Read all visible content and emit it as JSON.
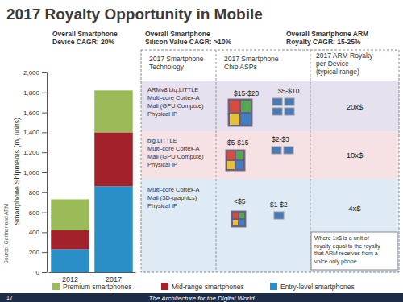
{
  "chart_data": {
    "type": "bar",
    "stacked": true,
    "legend": "bottom",
    "categories": [
      "2012",
      "2017"
    ],
    "series": [
      {
        "name": "Entry-level smartphones",
        "color": "#2b8fc7",
        "values": [
          230,
          860
        ]
      },
      {
        "name": "Mid-range smartphones",
        "color": "#a3212a",
        "values": [
          190,
          540
        ]
      },
      {
        "name": "Premium smartphones",
        "color": "#9bbb59",
        "values": [
          310,
          420
        ]
      }
    ],
    "ylim": [
      0,
      2000
    ],
    "yticks": [
      0,
      200,
      400,
      600,
      800,
      {
        "value": 1000,
        "label": "1,000"
      },
      {
        "value": 1200,
        "label": "1,200"
      },
      {
        "value": 1400,
        "label": "1,400"
      },
      {
        "value": 1600,
        "label": "1,600"
      },
      {
        "value": 1800,
        "label": "1,800"
      },
      {
        "value": 2000,
        "label": "2,000"
      }
    ],
    "y_label": "Smartphone Shipments (m, units)",
    "annotation": "Source: Gartner and ARM"
  },
  "slide": {
    "title": "2017 Royalty Opportunity in Mobile",
    "cagr": [
      [
        "Overall Smartphone",
        "Device CAGR: 20%"
      ],
      [
        "Overall Smartphone",
        "Silicon Value CAGR: >10%"
      ],
      [
        "Overall Smartphone ARM",
        "Royalty CAGR: 15-25%"
      ]
    ],
    "table": {
      "header": [
        [
          "2017 Smartphone",
          "Technology"
        ],
        [
          "2017 Smartphone",
          "Chip ASPs"
        ],
        [
          "2017 ARM Royalty",
          "per Device",
          "(typical range)"
        ]
      ],
      "rows": [
        {
          "technology": [
            "ARMv8 big.LITTLE",
            "Multi-core Cortex-A",
            "Mali (GPU Compute)",
            "Physical IP"
          ],
          "asps": [
            "$15-$20",
            "$5-$10"
          ],
          "royalty": "20x$"
        },
        {
          "technology": [
            "big.LITTLE",
            "Multi-core Cortex-A",
            "Mali (GPU Compute)",
            "Physical IP"
          ],
          "asps": [
            "$5-$15",
            "$2-$3"
          ],
          "royalty": "10x$"
        },
        {
          "technology": [
            "Multi-core Cortex-A",
            "Mali (3D-graphics)",
            "Physical IP"
          ],
          "asps": [
            "<$5",
            "$1-$2"
          ],
          "royalty": "4x$"
        }
      ]
    },
    "note": [
      "Where 1x$ is a unit of",
      "royalty equal to the royalty",
      "that ARM receives from a",
      "voice only phone"
    ],
    "footer": "The Architecture for the Digital World",
    "page": 17
  }
}
